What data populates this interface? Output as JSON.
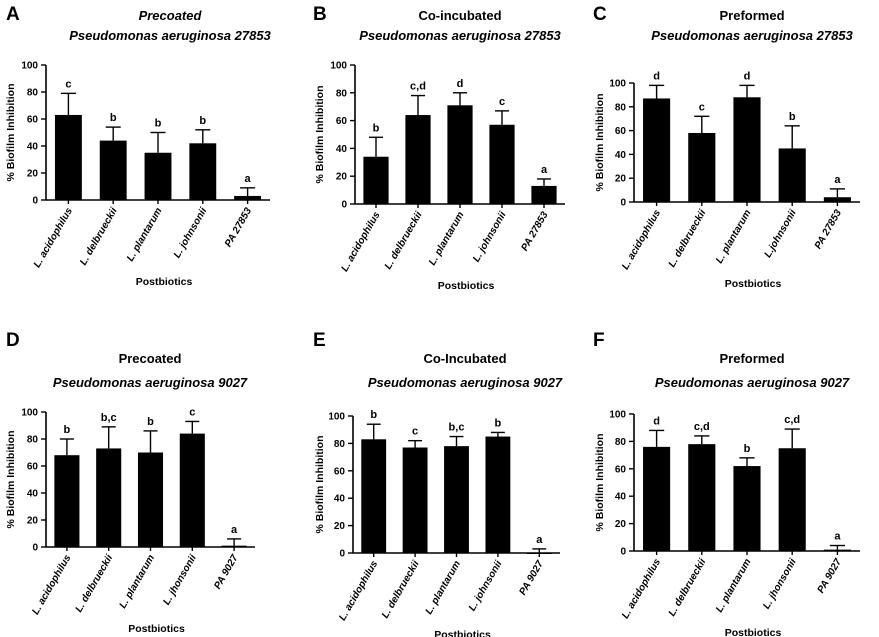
{
  "chart_data": [
    {
      "panel": "A",
      "type": "bar",
      "title_line1": "Precoated",
      "title_line2": "Pseudomonas aeruginosa 27853",
      "title_line1_italic": true,
      "categories": [
        "L. acidophilus",
        "L. delbrueckii",
        "L. plantarum",
        "L. johnsonii",
        "PA 27853"
      ],
      "values": [
        63,
        44,
        35,
        42,
        3
      ],
      "errors": [
        16,
        10,
        15,
        10,
        6
      ],
      "significance": [
        "c",
        "b",
        "b",
        "b",
        "a"
      ],
      "ylabel": "% Biofilm Inhibition",
      "xlabel": "Postbiotics",
      "ylim": [
        0,
        100
      ],
      "yticks": [
        0,
        20,
        40,
        60,
        80,
        100
      ]
    },
    {
      "panel": "B",
      "type": "bar",
      "title_line1": "Co-incubated",
      "title_line2": "Pseudomonas aeruginosa 27853",
      "title_line1_italic": false,
      "categories": [
        "L. acidophilus",
        "L. delbrueckii",
        "L. plantarum",
        "L. johnsonii",
        "PA 27853"
      ],
      "values": [
        34,
        64,
        71,
        57,
        13
      ],
      "errors": [
        14,
        14,
        9,
        10,
        5
      ],
      "significance": [
        "b",
        "c,d",
        "d",
        "c",
        "a"
      ],
      "ylabel": "% Biofilm Inhibition",
      "xlabel": "Postbiotics",
      "ylim": [
        0,
        100
      ],
      "yticks": [
        0,
        20,
        40,
        60,
        80,
        100
      ]
    },
    {
      "panel": "C",
      "type": "bar",
      "title_line1": "Preformed",
      "title_line2": "Pseudomonas aeruginosa 27853",
      "title_line1_italic": false,
      "categories": [
        "L. acidophilus",
        "L. delbrueckii",
        "L. plantarum",
        "L.johnsonii",
        "PA 27853"
      ],
      "values": [
        87,
        58,
        88,
        45,
        4
      ],
      "errors": [
        11,
        14,
        10,
        19,
        7
      ],
      "significance": [
        "d",
        "c",
        "d",
        "b",
        "a"
      ],
      "ylabel": "% Biofilm Inhibition",
      "xlabel": "Postbiotics",
      "ylim": [
        0,
        100
      ],
      "yticks": [
        0,
        20,
        40,
        60,
        80,
        100
      ]
    },
    {
      "panel": "D",
      "type": "bar",
      "title_line1": "Precoated",
      "title_line2": "Pseudomonas aeruginosa 9027",
      "title_line1_italic": false,
      "categories": [
        "L. acidophilus",
        "L. delbrueckii",
        "L. plantarum",
        "L. jhonsonii",
        "PA 9027"
      ],
      "values": [
        68,
        73,
        70,
        84,
        1
      ],
      "errors": [
        12,
        16,
        16,
        9,
        5
      ],
      "significance": [
        "b",
        "b,c",
        "b",
        "c",
        "a"
      ],
      "ylabel": "% Biofilm Inhibition",
      "xlabel": "Postbiotics",
      "ylim": [
        0,
        100
      ],
      "yticks": [
        0,
        20,
        40,
        60,
        80,
        100
      ]
    },
    {
      "panel": "E",
      "type": "bar",
      "title_line1": "Co-Incubated",
      "title_line2": "Pseudomonas aeruginosa 9027",
      "title_line1_italic": false,
      "categories": [
        "L. acidophilus",
        "L. delbrueckii",
        "L. plantarum",
        "L. johnsonii",
        "PA 9027"
      ],
      "values": [
        83,
        77,
        78,
        85,
        0
      ],
      "errors": [
        11,
        5,
        7,
        3,
        3
      ],
      "significance": [
        "b",
        "c",
        "b,c",
        "b",
        "a"
      ],
      "ylabel": "% Biofilm Inhibition",
      "xlabel": "Postbiotics",
      "ylim": [
        0,
        100
      ],
      "yticks": [
        0,
        20,
        40,
        60,
        80,
        100
      ]
    },
    {
      "panel": "F",
      "type": "bar",
      "title_line1": "Preformed",
      "title_line2": "Pseudomonas aeruginosa 9027",
      "title_line1_italic": false,
      "categories": [
        "L. acidophilus",
        "L. delbrueckii",
        "L. plantarum",
        "L. jhonsonii",
        "PA 9027"
      ],
      "values": [
        76,
        78,
        62,
        75,
        1
      ],
      "errors": [
        12,
        6,
        6,
        14,
        3
      ],
      "significance": [
        "d",
        "c,d",
        "b",
        "c,d",
        "a"
      ],
      "ylabel": "% Biofilm Inhibition",
      "xlabel": "Postbiotics",
      "ylim": [
        0,
        100
      ],
      "yticks": [
        0,
        20,
        40,
        60,
        80,
        100
      ]
    }
  ]
}
